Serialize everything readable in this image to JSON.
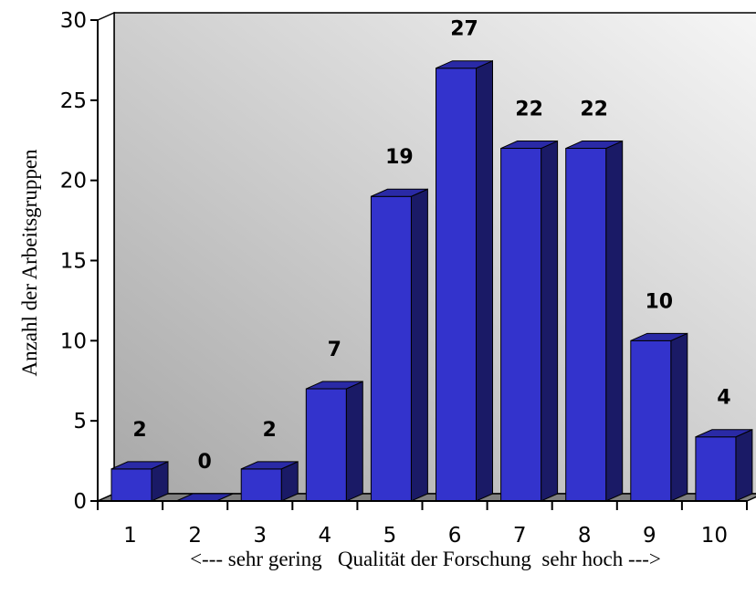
{
  "chart_data": {
    "type": "bar",
    "categories": [
      "1",
      "2",
      "3",
      "4",
      "5",
      "6",
      "7",
      "8",
      "9",
      "10"
    ],
    "values": [
      2,
      0,
      2,
      7,
      19,
      27,
      22,
      22,
      10,
      4
    ],
    "data_labels": [
      "2",
      "0",
      "2",
      "7",
      "19",
      "27",
      "22",
      "22",
      "10",
      "4"
    ],
    "xlabel": "<--- sehr gering   Qualität der Forschung  sehr hoch --->",
    "ylabel": "Anzahl der Arbeitsgruppen",
    "ylim": [
      0,
      30
    ],
    "yticks": [
      "0",
      "5",
      "10",
      "15",
      "20",
      "25",
      "30"
    ],
    "grid": false,
    "legend": "none",
    "colors": {
      "bar_front": "#3333cc",
      "bar_side": "#1a1a66",
      "bar_top": "#2a2aa6",
      "wall_dark": "#a8a8a8",
      "wall_light": "#f6f6f6",
      "floor": "#808080"
    }
  }
}
